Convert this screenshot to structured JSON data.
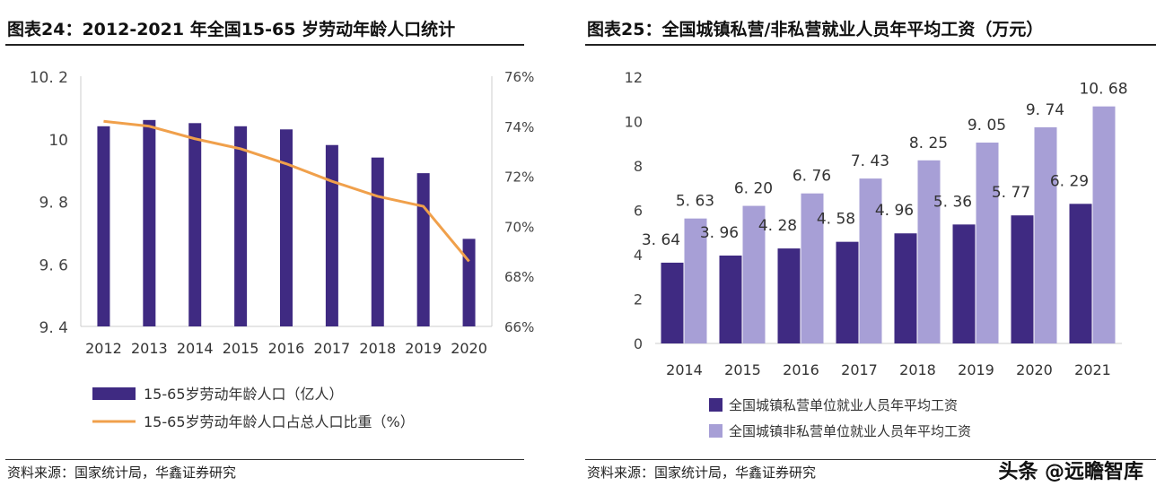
{
  "left": {
    "title": "图表24：2012-2021 年全国15-65 岁劳动年龄人口统计",
    "source": "资料来源：国家统计局，华鑫证券研究"
  },
  "right": {
    "title": "图表25：全国城镇私营/非私营就业人员年平均工资（万元）",
    "source": "资料来源：国家统计局，华鑫证券研究"
  },
  "watermark": "头条 @远瞻智库",
  "chart_data": [
    {
      "type": "bar+line",
      "categories": [
        "2012",
        "2013",
        "2014",
        "2015",
        "2016",
        "2017",
        "2018",
        "2019",
        "2020"
      ],
      "series": [
        {
          "name": "15-65岁劳动年龄人口（亿人）",
          "type": "bar",
          "axis": "left",
          "color": "#3f2a82",
          "values": [
            10.04,
            10.06,
            10.05,
            10.04,
            10.03,
            9.98,
            9.94,
            9.89,
            9.68
          ]
        },
        {
          "name": "15-65岁劳动年龄人口占总人口比重（%）",
          "type": "line",
          "axis": "right",
          "color": "#f0a04b",
          "values": [
            74.2,
            74.0,
            73.5,
            73.1,
            72.5,
            71.8,
            71.2,
            70.8,
            68.6
          ]
        }
      ],
      "ylim": [
        9.4,
        10.2
      ],
      "yticks": [
        "9. 4",
        "9. 6",
        "9. 8",
        "10",
        "10. 2"
      ],
      "y2lim": [
        66,
        76
      ],
      "y2ticks": [
        "66%",
        "68%",
        "70%",
        "72%",
        "74%",
        "76%"
      ],
      "legend": "bottom"
    },
    {
      "type": "bar",
      "categories": [
        "2014",
        "2015",
        "2016",
        "2017",
        "2018",
        "2019",
        "2020",
        "2021"
      ],
      "series": [
        {
          "name": "全国城镇私营单位就业人员年平均工资",
          "color": "#3f2a82",
          "values": [
            3.64,
            3.96,
            4.28,
            4.58,
            4.96,
            5.36,
            5.77,
            6.29
          ],
          "labels": [
            "3. 64",
            "3. 96",
            "4. 28",
            "4. 58",
            "4. 96",
            "5. 36",
            "5. 77",
            "6. 29"
          ]
        },
        {
          "name": "全国城镇非私营单位就业人员年平均工资",
          "color": "#a79fd6",
          "values": [
            5.63,
            6.2,
            6.76,
            7.43,
            8.25,
            9.05,
            9.74,
            10.68
          ],
          "labels": [
            "5. 63",
            "6. 20",
            "6. 76",
            "7. 43",
            "8. 25",
            "9. 05",
            "9. 74",
            "10. 68"
          ]
        }
      ],
      "ylim": [
        0,
        12
      ],
      "yticks": [
        "0",
        "2",
        "4",
        "6",
        "8",
        "10",
        "12"
      ],
      "legend": "bottom"
    }
  ]
}
